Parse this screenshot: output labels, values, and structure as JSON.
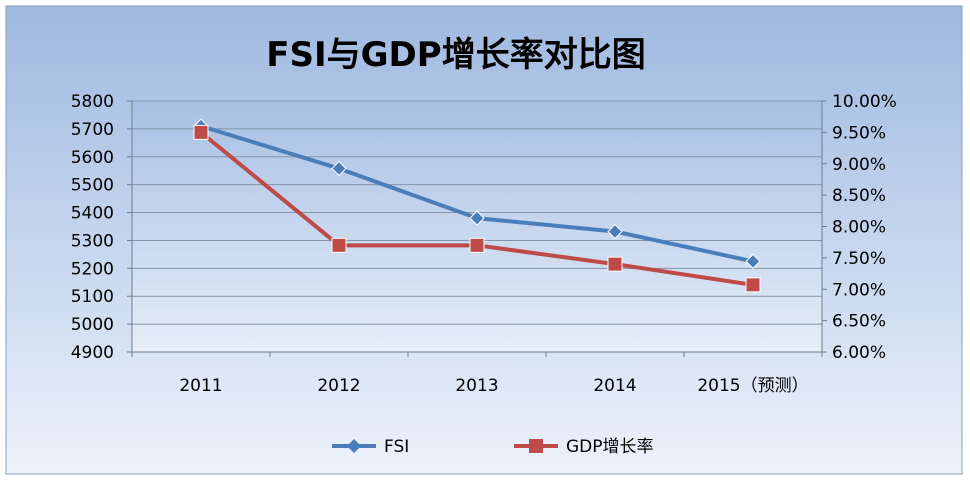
{
  "chart_data": {
    "type": "line",
    "title": "FSI与GDP增长率对比图",
    "categories": [
      "2011",
      "2012",
      "2013",
      "2014",
      "2015（预测）"
    ],
    "y_left": {
      "ylim": [
        4900,
        5800
      ],
      "ticks": [
        "5800",
        "5700",
        "5600",
        "5500",
        "5400",
        "5300",
        "5200",
        "5100",
        "5000",
        "4900"
      ]
    },
    "y_right": {
      "ylim": [
        6.0,
        10.0
      ],
      "ticks": [
        "10.00%",
        "9.50%",
        "9.00%",
        "8.50%",
        "8.00%",
        "7.50%",
        "7.00%",
        "6.50%",
        "6.00%"
      ]
    },
    "series": [
      {
        "name": "FSI",
        "axis": "left",
        "color": "#4a7ebb",
        "marker": "diamond",
        "values": [
          5710,
          5558,
          5380,
          5332,
          5225
        ]
      },
      {
        "name": "GDP增长率",
        "axis": "right",
        "color": "#be4b48",
        "marker": "square",
        "values": [
          9.5,
          7.7,
          7.7,
          7.4,
          7.07
        ]
      }
    ],
    "grid": true,
    "legend": "bottom"
  }
}
